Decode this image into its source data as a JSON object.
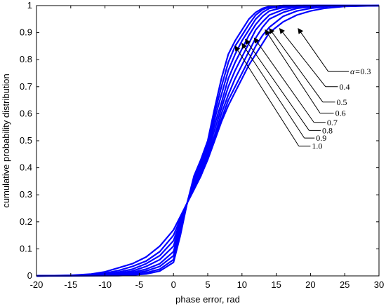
{
  "chart_data": {
    "type": "line",
    "title": "",
    "xlabel": "phase error, rad",
    "ylabel": "cumulative probability distribution",
    "xlim": [
      -20,
      30
    ],
    "ylim": [
      0,
      1
    ],
    "xticks": [
      "-20",
      "-15",
      "-10",
      "-5",
      "0",
      "5",
      "10",
      "15",
      "20",
      "25",
      "30"
    ],
    "yticks": [
      "0",
      "0.1",
      "0.2",
      "0.3",
      "0.4",
      "0.5",
      "0.6",
      "0.7",
      "0.8",
      "0.9",
      "1"
    ],
    "grid": false,
    "line_color": "#0000ff",
    "annotation_prefix": "α=",
    "series": [
      {
        "name": "0.3",
        "label_text": "0.3",
        "points": [
          [
            -20,
            0
          ],
          [
            -15,
            0.002
          ],
          [
            -12,
            0.007
          ],
          [
            -10,
            0.015
          ],
          [
            -8,
            0.03
          ],
          [
            -6,
            0.045
          ],
          [
            -4,
            0.07
          ],
          [
            -2,
            0.11
          ],
          [
            0,
            0.17
          ],
          [
            1,
            0.22
          ],
          [
            2,
            0.27
          ],
          [
            3,
            0.32
          ],
          [
            4,
            0.37
          ],
          [
            5,
            0.43
          ],
          [
            6,
            0.5
          ],
          [
            7,
            0.57
          ],
          [
            8,
            0.63
          ],
          [
            9,
            0.68
          ],
          [
            10,
            0.73
          ],
          [
            11,
            0.78
          ],
          [
            12,
            0.82
          ],
          [
            13,
            0.86
          ],
          [
            14,
            0.9
          ],
          [
            16,
            0.94
          ],
          [
            18,
            0.965
          ],
          [
            20,
            0.98
          ],
          [
            22,
            0.99
          ],
          [
            25,
            0.997
          ],
          [
            30,
            1.0
          ]
        ]
      },
      {
        "name": "0.4",
        "label_text": "0.4",
        "points": [
          [
            -20,
            0
          ],
          [
            -15,
            0.001
          ],
          [
            -12,
            0.005
          ],
          [
            -10,
            0.01
          ],
          [
            -8,
            0.02
          ],
          [
            -6,
            0.035
          ],
          [
            -4,
            0.055
          ],
          [
            -2,
            0.09
          ],
          [
            0,
            0.15
          ],
          [
            1,
            0.21
          ],
          [
            2,
            0.27
          ],
          [
            3,
            0.32
          ],
          [
            4,
            0.37
          ],
          [
            5,
            0.44
          ],
          [
            6,
            0.51
          ],
          [
            7,
            0.58
          ],
          [
            8,
            0.65
          ],
          [
            9,
            0.7
          ],
          [
            10,
            0.75
          ],
          [
            11,
            0.8
          ],
          [
            12,
            0.85
          ],
          [
            13,
            0.89
          ],
          [
            14,
            0.92
          ],
          [
            16,
            0.96
          ],
          [
            18,
            0.98
          ],
          [
            20,
            0.99
          ],
          [
            23,
            0.998
          ],
          [
            30,
            1.0
          ]
        ]
      },
      {
        "name": "0.5",
        "label_text": "0.5",
        "points": [
          [
            -20,
            0
          ],
          [
            -15,
            0.0
          ],
          [
            -12,
            0.003
          ],
          [
            -10,
            0.007
          ],
          [
            -8,
            0.014
          ],
          [
            -6,
            0.025
          ],
          [
            -4,
            0.045
          ],
          [
            -2,
            0.075
          ],
          [
            0,
            0.13
          ],
          [
            1,
            0.2
          ],
          [
            2,
            0.27
          ],
          [
            3,
            0.33
          ],
          [
            4,
            0.38
          ],
          [
            5,
            0.45
          ],
          [
            6,
            0.52
          ],
          [
            7,
            0.6
          ],
          [
            8,
            0.67
          ],
          [
            9,
            0.73
          ],
          [
            10,
            0.78
          ],
          [
            11,
            0.83
          ],
          [
            12,
            0.88
          ],
          [
            13,
            0.92
          ],
          [
            14,
            0.95
          ],
          [
            16,
            0.975
          ],
          [
            18,
            0.99
          ],
          [
            21,
            0.998
          ],
          [
            30,
            1.0
          ]
        ]
      },
      {
        "name": "0.6",
        "label_text": "0.6",
        "points": [
          [
            -20,
            0
          ],
          [
            -12,
            0.002
          ],
          [
            -10,
            0.005
          ],
          [
            -8,
            0.01
          ],
          [
            -6,
            0.018
          ],
          [
            -4,
            0.035
          ],
          [
            -2,
            0.06
          ],
          [
            0,
            0.11
          ],
          [
            1,
            0.19
          ],
          [
            2,
            0.27
          ],
          [
            3,
            0.33
          ],
          [
            4,
            0.39
          ],
          [
            5,
            0.46
          ],
          [
            6,
            0.54
          ],
          [
            7,
            0.62
          ],
          [
            8,
            0.7
          ],
          [
            9,
            0.76
          ],
          [
            10,
            0.81
          ],
          [
            11,
            0.86
          ],
          [
            12,
            0.91
          ],
          [
            13,
            0.94
          ],
          [
            14,
            0.965
          ],
          [
            16,
            0.985
          ],
          [
            18,
            0.995
          ],
          [
            21,
            1.0
          ],
          [
            30,
            1.0
          ]
        ]
      },
      {
        "name": "0.7",
        "label_text": "0.7",
        "points": [
          [
            -20,
            0
          ],
          [
            -10,
            0.003
          ],
          [
            -8,
            0.007
          ],
          [
            -6,
            0.013
          ],
          [
            -4,
            0.025
          ],
          [
            -2,
            0.045
          ],
          [
            0,
            0.09
          ],
          [
            1,
            0.18
          ],
          [
            2,
            0.27
          ],
          [
            3,
            0.34
          ],
          [
            4,
            0.4
          ],
          [
            5,
            0.47
          ],
          [
            6,
            0.56
          ],
          [
            7,
            0.64
          ],
          [
            8,
            0.73
          ],
          [
            9,
            0.79
          ],
          [
            10,
            0.84
          ],
          [
            11,
            0.89
          ],
          [
            12,
            0.93
          ],
          [
            13,
            0.96
          ],
          [
            14,
            0.98
          ],
          [
            16,
            0.993
          ],
          [
            19,
            1.0
          ],
          [
            30,
            1.0
          ]
        ]
      },
      {
        "name": "0.8",
        "label_text": "0.8",
        "points": [
          [
            -20,
            0
          ],
          [
            -10,
            0.002
          ],
          [
            -8,
            0.004
          ],
          [
            -6,
            0.009
          ],
          [
            -4,
            0.018
          ],
          [
            -2,
            0.035
          ],
          [
            0,
            0.075
          ],
          [
            1,
            0.17
          ],
          [
            2,
            0.27
          ],
          [
            3,
            0.35
          ],
          [
            4,
            0.41
          ],
          [
            5,
            0.48
          ],
          [
            6,
            0.58
          ],
          [
            7,
            0.67
          ],
          [
            8,
            0.76
          ],
          [
            9,
            0.82
          ],
          [
            10,
            0.87
          ],
          [
            11,
            0.91
          ],
          [
            12,
            0.95
          ],
          [
            13,
            0.975
          ],
          [
            14,
            0.99
          ],
          [
            16,
            0.997
          ],
          [
            18,
            1.0
          ],
          [
            30,
            1.0
          ]
        ]
      },
      {
        "name": "0.9",
        "label_text": "0.9",
        "points": [
          [
            -20,
            0
          ],
          [
            -8,
            0.002
          ],
          [
            -6,
            0.006
          ],
          [
            -4,
            0.012
          ],
          [
            -2,
            0.025
          ],
          [
            0,
            0.06
          ],
          [
            1,
            0.16
          ],
          [
            2,
            0.27
          ],
          [
            3,
            0.36
          ],
          [
            4,
            0.42
          ],
          [
            5,
            0.49
          ],
          [
            6,
            0.6
          ],
          [
            7,
            0.7
          ],
          [
            8,
            0.79
          ],
          [
            9,
            0.85
          ],
          [
            10,
            0.89
          ],
          [
            11,
            0.93
          ],
          [
            12,
            0.965
          ],
          [
            13,
            0.985
          ],
          [
            14,
            0.995
          ],
          [
            16,
            1.0
          ],
          [
            30,
            1.0
          ]
        ]
      },
      {
        "name": "1.0",
        "label_text": "1.0",
        "points": [
          [
            -20,
            0
          ],
          [
            -8,
            0.001
          ],
          [
            -6,
            0.003
          ],
          [
            -4,
            0.007
          ],
          [
            -2,
            0.018
          ],
          [
            0,
            0.05
          ],
          [
            1,
            0.15
          ],
          [
            2,
            0.27
          ],
          [
            3,
            0.37
          ],
          [
            4,
            0.43
          ],
          [
            5,
            0.5
          ],
          [
            6,
            0.62
          ],
          [
            7,
            0.73
          ],
          [
            8,
            0.82
          ],
          [
            9,
            0.87
          ],
          [
            10,
            0.91
          ],
          [
            11,
            0.95
          ],
          [
            12,
            0.975
          ],
          [
            13,
            0.99
          ],
          [
            14,
            0.997
          ],
          [
            16,
            1.0
          ],
          [
            30,
            1.0
          ]
        ]
      }
    ]
  }
}
